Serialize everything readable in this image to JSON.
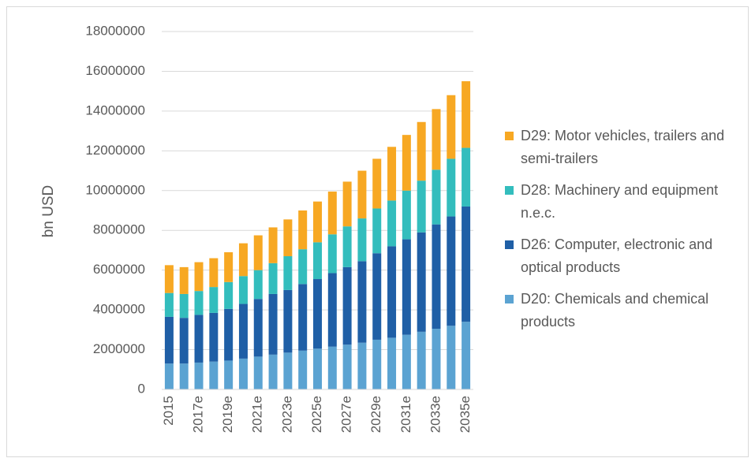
{
  "chart_data": {
    "type": "stacked-bar",
    "y_label": "bn USD",
    "categories": [
      "2015",
      null,
      "2017e",
      null,
      "2019e",
      null,
      "2021e",
      null,
      "2023e",
      null,
      "2025e",
      null,
      "2027e",
      null,
      "2029e",
      null,
      "2031e",
      null,
      "2033e",
      null,
      "2035e"
    ],
    "series": [
      {
        "name": "D20: Chemicals and chemical products",
        "color": "#5ba3d2",
        "values": [
          1300000,
          1300000,
          1350000,
          1400000,
          1450000,
          1550000,
          1650000,
          1750000,
          1850000,
          1950000,
          2050000,
          2150000,
          2250000,
          2350000,
          2500000,
          2600000,
          2750000,
          2900000,
          3050000,
          3200000,
          3400000
        ]
      },
      {
        "name": "D26: Computer, electronic and optical products",
        "color": "#1f5fa6",
        "values": [
          2350000,
          2300000,
          2400000,
          2450000,
          2600000,
          2750000,
          2900000,
          3050000,
          3150000,
          3350000,
          3500000,
          3700000,
          3900000,
          4100000,
          4350000,
          4600000,
          4800000,
          5000000,
          5250000,
          5500000,
          5800000
        ]
      },
      {
        "name": "D28: Machinery and equipment n.e.c.",
        "color": "#33bdbd",
        "values": [
          1200000,
          1200000,
          1200000,
          1300000,
          1350000,
          1400000,
          1450000,
          1550000,
          1700000,
          1750000,
          1850000,
          1950000,
          2050000,
          2150000,
          2250000,
          2300000,
          2450000,
          2600000,
          2750000,
          2900000,
          2950000
        ]
      },
      {
        "name": "D29: Motor vehicles, trailers and semi-trailers",
        "color": "#f7a823",
        "values": [
          1400000,
          1350000,
          1450000,
          1450000,
          1500000,
          1650000,
          1750000,
          1800000,
          1850000,
          1950000,
          2050000,
          2150000,
          2250000,
          2400000,
          2500000,
          2700000,
          2800000,
          2950000,
          3050000,
          3200000,
          3350000
        ]
      }
    ],
    "ylim": [
      0,
      18000000
    ],
    "yticks": [
      0,
      2000000,
      4000000,
      6000000,
      8000000,
      10000000,
      12000000,
      14000000,
      16000000,
      18000000
    ],
    "grid": true,
    "legend": "right"
  }
}
